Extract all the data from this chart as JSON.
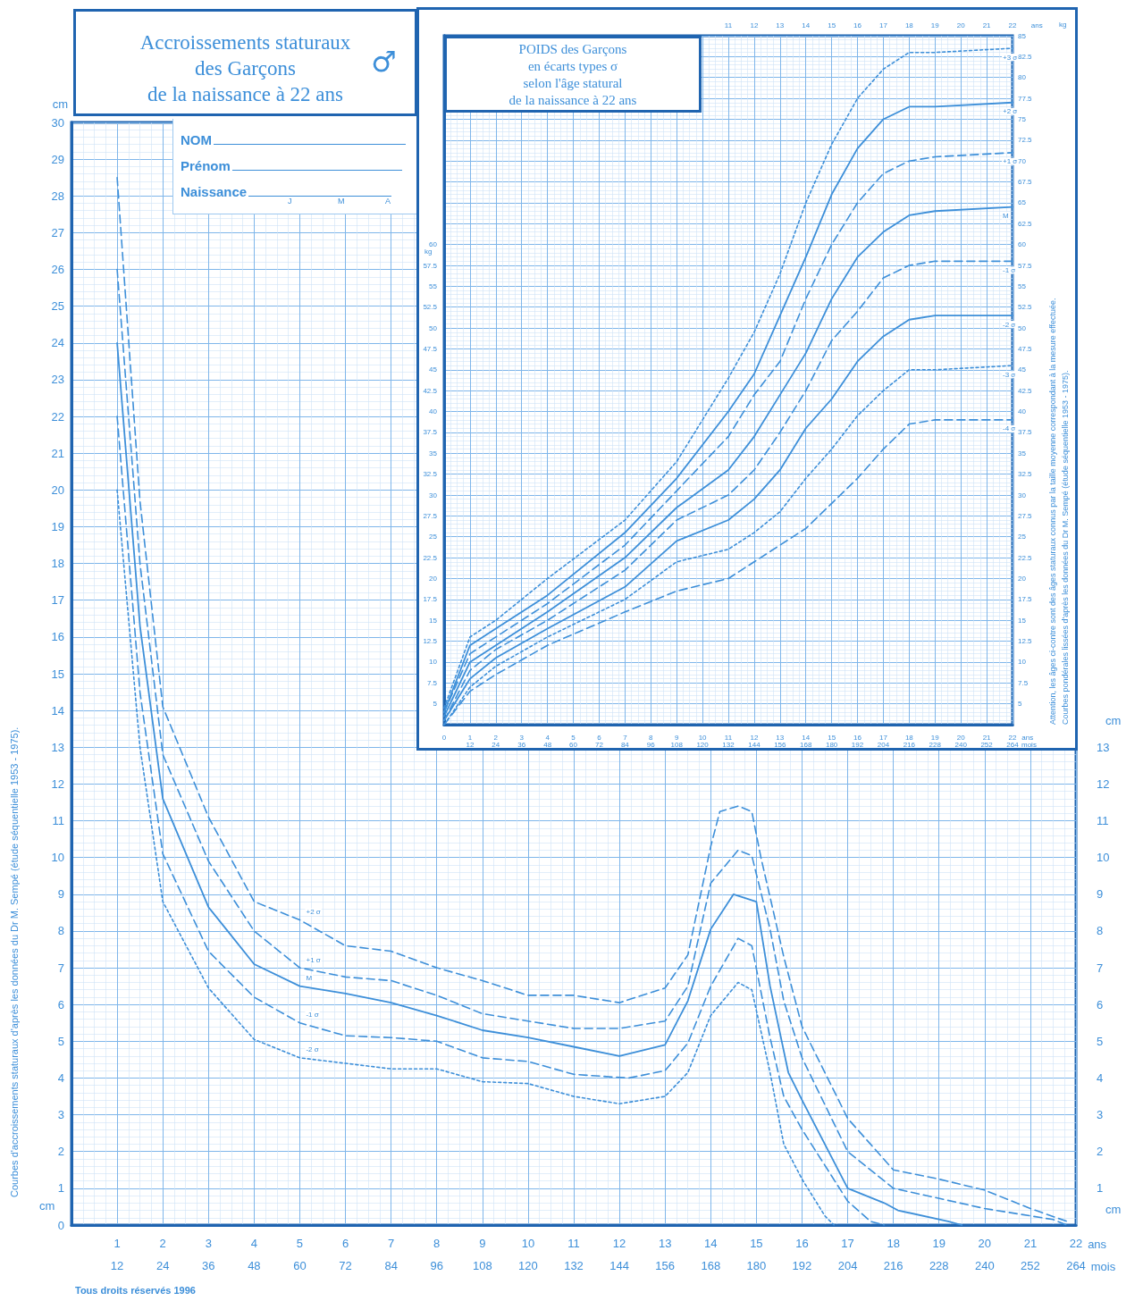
{
  "chart_data": [
    {
      "type": "line",
      "title": "Accroissements staturaux\ndes Garçons\nde la naissance à 22 ans",
      "xlabel": "ans",
      "x2label": "mois",
      "ylabel": "cm",
      "y2label": "cm",
      "xlim": [
        0,
        22
      ],
      "xticks": [
        1,
        2,
        3,
        4,
        5,
        6,
        7,
        8,
        9,
        10,
        11,
        12,
        13,
        14,
        15,
        16,
        17,
        18,
        19,
        20,
        21,
        22
      ],
      "x2lim": [
        0,
        264
      ],
      "x2ticks": [
        12,
        24,
        36,
        48,
        60,
        72,
        84,
        96,
        108,
        120,
        132,
        144,
        156,
        168,
        180,
        192,
        204,
        216,
        228,
        240,
        252,
        264
      ],
      "ylim": [
        0,
        30
      ],
      "yticks": [
        0,
        1,
        2,
        3,
        4,
        5,
        6,
        7,
        8,
        9,
        10,
        11,
        12,
        13,
        14,
        15,
        16,
        17,
        18,
        19,
        20,
        21,
        22,
        23,
        24,
        25,
        26,
        27,
        28,
        29,
        30
      ],
      "y2lim": [
        0,
        30
      ],
      "y2ticks": [
        1,
        2,
        3,
        4,
        5,
        6,
        7,
        8,
        9,
        10,
        11,
        12,
        13
      ],
      "grid": true,
      "marker": "none",
      "annotations": [
        "♂",
        "NOM",
        "Prénom",
        "Naissance",
        "J",
        "M",
        "A",
        "Courbes d'accroissements staturaux d'après les données du Dr M. Sempé (étude séquentielle 1953 - 1975).",
        "cm",
        "cm",
        "Tous droits réservés 1996"
      ],
      "series": [
        {
          "name": "+2 σ",
          "color": "#3d8fd9",
          "line_style": "dashed",
          "x": [
            1,
            1.5,
            2,
            3,
            4,
            5,
            6,
            7,
            8,
            9,
            10,
            11,
            12,
            13,
            13.5,
            14,
            14.2,
            14.6,
            14.9,
            15.1,
            15.6,
            16,
            17,
            18,
            19,
            20,
            21,
            21.8
          ],
          "values": [
            28.5,
            19.7,
            14.1,
            11.1,
            8.8,
            8.3,
            7.6,
            7.45,
            7.0,
            6.65,
            6.25,
            6.25,
            6.05,
            6.45,
            7.35,
            10.3,
            11.25,
            11.4,
            11.25,
            10.0,
            7.3,
            5.4,
            2.9,
            1.5,
            1.25,
            0.95,
            0.45,
            0.1
          ]
        },
        {
          "name": "+1 σ",
          "color": "#3d8fd9",
          "line_style": "dashed",
          "x": [
            1,
            1.5,
            2,
            3,
            4,
            5,
            6,
            7,
            8,
            9,
            10,
            11,
            12,
            13,
            13.5,
            14,
            14.6,
            14.9,
            15.3,
            15.6,
            16,
            17,
            18,
            20,
            21.5,
            21.8
          ],
          "values": [
            26,
            18,
            12.8,
            9.9,
            8.0,
            7.0,
            6.75,
            6.65,
            6.25,
            5.75,
            5.55,
            5.35,
            5.35,
            5.55,
            6.5,
            9.3,
            10.2,
            10.05,
            8.05,
            6.1,
            4.55,
            2.0,
            1.0,
            0.45,
            0.15,
            0
          ]
        },
        {
          "name": "M",
          "color": "#3d8fd9",
          "line_style": "solid",
          "x": [
            1,
            1.5,
            2,
            3,
            4,
            5,
            6,
            7,
            8,
            9,
            10,
            11,
            12,
            13,
            13.5,
            14,
            14.5,
            15,
            15.3,
            15.7,
            16,
            17,
            17.8,
            18.1,
            19.2,
            19.5
          ],
          "values": [
            24,
            16.3,
            11.6,
            8.65,
            7.1,
            6.5,
            6.3,
            6.05,
            5.7,
            5.3,
            5.1,
            4.85,
            4.6,
            4.9,
            6.1,
            8.05,
            9.0,
            8.8,
            6.5,
            4.15,
            3.4,
            1.0,
            0.6,
            0.4,
            0.1,
            0
          ]
        },
        {
          "name": "-1 σ",
          "color": "#3d8fd9",
          "line_style": "dashed",
          "x": [
            1,
            1.5,
            2,
            3,
            4,
            5,
            6,
            7,
            8,
            9,
            10,
            11,
            12.2,
            13,
            13.5,
            14,
            14.6,
            14.9,
            15.3,
            15.6,
            16,
            17,
            17.5,
            17.8
          ],
          "values": [
            22,
            14.5,
            10.1,
            7.45,
            6.2,
            5.5,
            5.15,
            5.1,
            5.0,
            4.55,
            4.45,
            4.1,
            4.0,
            4.2,
            4.95,
            6.5,
            7.8,
            7.6,
            5.1,
            3.5,
            2.6,
            0.65,
            0.1,
            0
          ]
        },
        {
          "name": "-2 σ",
          "color": "#3d8fd9",
          "line_style": "dotted",
          "x": [
            1,
            1.5,
            2,
            3,
            4,
            5,
            6,
            7,
            8,
            9,
            10,
            11,
            12,
            13,
            13.5,
            14,
            14.6,
            14.9,
            15.3,
            15.6,
            16,
            16.5,
            16.7
          ],
          "values": [
            20,
            13,
            8.8,
            6.45,
            5.05,
            4.55,
            4.4,
            4.25,
            4.25,
            3.9,
            3.85,
            3.5,
            3.3,
            3.5,
            4.15,
            5.7,
            6.6,
            6.4,
            4.15,
            2.2,
            1.25,
            0.25,
            0
          ]
        }
      ]
    },
    {
      "type": "line",
      "title": "POIDS des Garçons\nen écarts types σ\nselon l'âge statural\nde la naissance à 22 ans",
      "xlabel": "ans",
      "x2label": "ans",
      "ylabel": "kg",
      "y2label": "kg",
      "xlim": [
        0,
        22
      ],
      "xticks": [
        0,
        1,
        2,
        3,
        4,
        5,
        6,
        7,
        8,
        9,
        10,
        11,
        12,
        13,
        14,
        15,
        16,
        17,
        18,
        19,
        20,
        21,
        22
      ],
      "x2lim": [
        0,
        22
      ],
      "x2ticks": [
        11,
        12,
        13,
        14,
        15,
        16,
        17,
        18,
        19,
        20,
        21,
        22
      ],
      "ylim": [
        2.5,
        85
      ],
      "yticks": [
        5,
        7.5,
        10,
        12.5,
        15,
        17.5,
        20,
        22.5,
        25,
        27.5,
        30,
        32.5,
        35,
        37.5,
        40,
        42.5,
        45,
        47.5,
        50,
        52.5,
        55,
        57.5,
        60
      ],
      "y2lim": [
        2.5,
        85
      ],
      "y2ticks": [
        5,
        7.5,
        10,
        12.5,
        15,
        17.5,
        20,
        22.5,
        25,
        27.5,
        30,
        32.5,
        35,
        37.5,
        40,
        42.5,
        45,
        47.5,
        50,
        52.5,
        55,
        57.5,
        60,
        62.5,
        65,
        67.5,
        70,
        72.5,
        75,
        77.5,
        80,
        82.5,
        85
      ],
      "grid": true,
      "marker": "none",
      "annotations": [
        "Attention, les âges ci-contre sont des âges staturaux connus par la taille moyenne correspondant à la mesure effectuée.",
        "Courbes pondérales lissées d'après les données du Dr M. Sempé (étude séquentielle 1953 - 1975).",
        "12",
        "24",
        "36",
        "48",
        "60",
        "72",
        "84",
        "96",
        "108",
        "120",
        "132",
        "144",
        "156",
        "168",
        "180",
        "192",
        "204",
        "216",
        "228",
        "240",
        "252",
        "264",
        "mois"
      ],
      "x": [
        0,
        1,
        2,
        4,
        7,
        9,
        11,
        12,
        13,
        14,
        15,
        16,
        17,
        18,
        19,
        22
      ],
      "series": [
        {
          "name": "+3 σ",
          "color": "#3d8fd9",
          "line_style": "dotted",
          "values": [
            4.5,
            13,
            15,
            20,
            27,
            34,
            44,
            49.5,
            56.5,
            65,
            72,
            77.5,
            81,
            83,
            83,
            83.5
          ]
        },
        {
          "name": "+2 σ",
          "color": "#3d8fd9",
          "line_style": "solid",
          "values": [
            4,
            12,
            14,
            18,
            25.5,
            32,
            40,
            44.5,
            51.5,
            58.5,
            66,
            71.5,
            75,
            76.5,
            76.5,
            77
          ]
        },
        {
          "name": "+1 σ",
          "color": "#3d8fd9",
          "line_style": "dashed",
          "values": [
            4,
            11,
            13,
            17,
            24,
            30.5,
            37,
            42,
            46,
            53.5,
            60,
            65,
            68.5,
            70,
            70.5,
            71
          ]
        },
        {
          "name": "M",
          "color": "#3d8fd9",
          "line_style": "solid",
          "values": [
            3.5,
            10,
            12,
            16,
            22.5,
            28.5,
            33,
            37,
            42,
            47,
            53.5,
            58.5,
            61.5,
            63.5,
            64,
            64.5
          ]
        },
        {
          "name": "-1 σ",
          "color": "#3d8fd9",
          "line_style": "dashed",
          "values": [
            3,
            9,
            11.5,
            15,
            21,
            27,
            30,
            33,
            37.5,
            42.5,
            48.5,
            52,
            56,
            57.5,
            58,
            58
          ]
        },
        {
          "name": "-2 σ",
          "color": "#3d8fd9",
          "line_style": "solid",
          "values": [
            3,
            8,
            10.5,
            14,
            19,
            24.5,
            27,
            29.5,
            33,
            38,
            41.5,
            46,
            49,
            51,
            51.5,
            51.5
          ]
        },
        {
          "name": "-3 σ",
          "color": "#3d8fd9",
          "line_style": "dotted",
          "values": [
            2.5,
            7,
            9.5,
            13,
            17.5,
            22,
            23.5,
            25.5,
            28,
            32,
            35.5,
            39.5,
            42.5,
            45,
            45,
            45.5
          ]
        },
        {
          "name": "-4 σ",
          "color": "#3d8fd9",
          "line_style": "dashed",
          "values": [
            2.5,
            6.5,
            8.5,
            12,
            16,
            18.5,
            20,
            22,
            24,
            26,
            29,
            32,
            35.5,
            38.5,
            39,
            39
          ]
        }
      ]
    }
  ]
}
